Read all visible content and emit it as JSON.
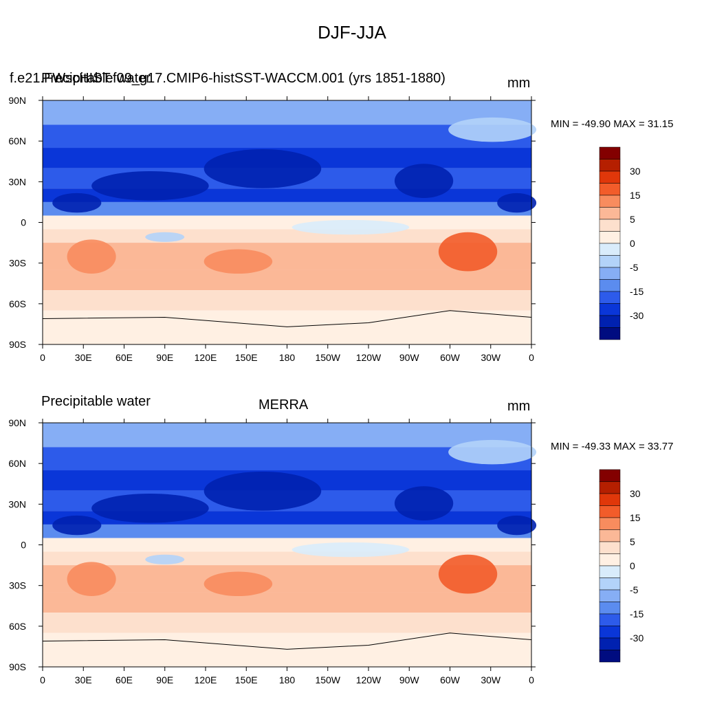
{
  "figure": {
    "title": "DJF-JJA"
  },
  "colors": {
    "levels": [
      "#830000",
      "#b51f00",
      "#e0370a",
      "#f25c2a",
      "#f88c5e",
      "#fbb897",
      "#fde0cd",
      "#fff0e3",
      "#d9ecfb",
      "#b3d3f9",
      "#86aef5",
      "#5b8cef",
      "#2d5bea",
      "#0a36d8",
      "#0021b0",
      "#000c80"
    ],
    "land_outline": "#000000",
    "frame": "#000000"
  },
  "colorbar": {
    "labels": [
      "30",
      "15",
      "5",
      "0",
      "-5",
      "-15",
      "-30"
    ]
  },
  "axes": {
    "y_labels": [
      "90N",
      "60N",
      "30N",
      "0",
      "30S",
      "60S",
      "90S"
    ],
    "x_labels": [
      "0",
      "30E",
      "60E",
      "90E",
      "120E",
      "150E",
      "180",
      "150W",
      "120W",
      "90W",
      "60W",
      "30W",
      "0"
    ]
  },
  "chart_data": [
    {
      "type": "heatmap",
      "title": "f.e21.FWscHIST.f09_g17.CMIP6-histSST-WACCM.001 (yrs 1851-1880)",
      "left_title": "Precipitable water",
      "units": "mm",
      "min_max_text": "MIN = -49.90 MAX =  31.15",
      "min": -49.9,
      "max": 31.15,
      "x_range_deg_east": [
        0,
        360
      ],
      "y_range_deg": [
        -90,
        90
      ],
      "levels": [
        -30,
        -15,
        -5,
        0,
        5,
        15,
        30
      ]
    },
    {
      "type": "heatmap",
      "title": "MERRA",
      "left_title": "Precipitable water",
      "units": "mm",
      "min_max_text": "MIN = -49.33 MAX =  33.77",
      "min": -49.33,
      "max": 33.77,
      "x_range_deg_east": [
        0,
        360
      ],
      "y_range_deg": [
        -90,
        90
      ],
      "levels": [
        -30,
        -15,
        -5,
        0,
        5,
        15,
        30
      ]
    }
  ]
}
